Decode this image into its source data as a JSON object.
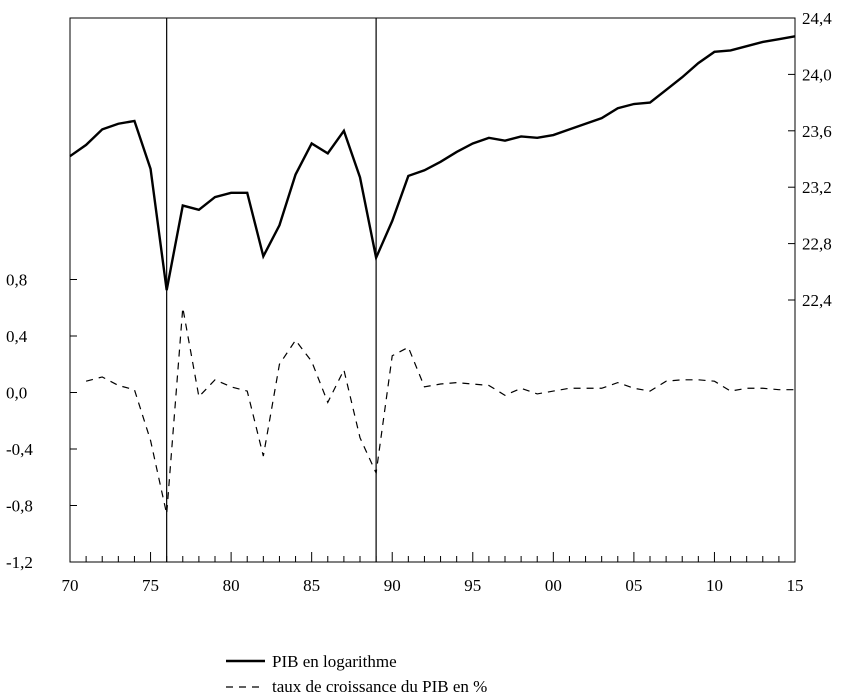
{
  "chart_data": {
    "type": "line",
    "title": "",
    "xlabel": "",
    "left_axis": {
      "ylim": [
        -1.2,
        1.2
      ],
      "ticks": [
        0.8,
        0.4,
        0.0,
        -0.4,
        -0.8,
        -1.2
      ],
      "tick_labels": [
        "0,8",
        "0,4",
        "0,0",
        "-0,4",
        "-0,8",
        "-1,2"
      ]
    },
    "right_axis": {
      "ylim": [
        22.4,
        24.4
      ],
      "ticks": [
        24.4,
        24.0,
        23.6,
        23.2,
        22.8,
        22.4
      ],
      "tick_labels": [
        "24,4",
        "24,0",
        "23,6",
        "23,2",
        "22,8",
        "22,4"
      ]
    },
    "x": {
      "range": [
        1970,
        2015
      ],
      "ticks": [
        1970,
        1975,
        1980,
        1985,
        1990,
        1995,
        2000,
        2005,
        2010,
        2015
      ],
      "tick_labels": [
        "70",
        "75",
        "80",
        "85",
        "90",
        "95",
        "00",
        "05",
        "10",
        "15"
      ]
    },
    "vertical_lines": [
      1976,
      1989
    ],
    "grid": false,
    "legend_position": "bottom-center",
    "series": [
      {
        "name": "PIB en logarithme",
        "axis": "right",
        "style": "solid",
        "x": [
          1970,
          1971,
          1972,
          1973,
          1974,
          1975,
          1976,
          1977,
          1978,
          1979,
          1980,
          1981,
          1982,
          1983,
          1984,
          1985,
          1986,
          1987,
          1988,
          1989,
          1990,
          1991,
          1992,
          1993,
          1994,
          1995,
          1996,
          1997,
          1998,
          1999,
          2000,
          2001,
          2002,
          2003,
          2004,
          2005,
          2006,
          2007,
          2008,
          2009,
          2010,
          2011,
          2012,
          2013,
          2014,
          2015
        ],
        "values": [
          23.42,
          23.5,
          23.61,
          23.65,
          23.67,
          23.33,
          22.47,
          23.07,
          23.04,
          23.13,
          23.16,
          23.16,
          22.71,
          22.93,
          23.29,
          23.51,
          23.44,
          23.6,
          23.27,
          22.7,
          22.96,
          23.28,
          23.32,
          23.38,
          23.45,
          23.51,
          23.55,
          23.53,
          23.56,
          23.55,
          23.57,
          23.61,
          23.65,
          23.69,
          23.76,
          23.79,
          23.8,
          23.89,
          23.98,
          24.08,
          24.16,
          24.17,
          24.2,
          24.23,
          24.25,
          24.27
        ]
      },
      {
        "name": "taux de croissance du PIB en %",
        "axis": "left",
        "style": "dashed",
        "x": [
          1971,
          1972,
          1973,
          1974,
          1975,
          1976,
          1977,
          1978,
          1979,
          1980,
          1981,
          1982,
          1983,
          1984,
          1985,
          1986,
          1987,
          1988,
          1989,
          1990,
          1991,
          1992,
          1993,
          1994,
          1995,
          1996,
          1997,
          1998,
          1999,
          2000,
          2001,
          2002,
          2003,
          2004,
          2005,
          2006,
          2007,
          2008,
          2009,
          2010,
          2011,
          2012,
          2013,
          2014,
          2015
        ],
        "values": [
          0.08,
          0.11,
          0.05,
          0.02,
          -0.34,
          -0.86,
          0.6,
          -0.03,
          0.09,
          0.04,
          0.01,
          -0.45,
          0.2,
          0.37,
          0.22,
          -0.07,
          0.16,
          -0.32,
          -0.57,
          0.26,
          0.32,
          0.04,
          0.06,
          0.07,
          0.06,
          0.05,
          -0.02,
          0.03,
          -0.01,
          0.01,
          0.03,
          0.03,
          0.03,
          0.07,
          0.03,
          0.01,
          0.08,
          0.09,
          0.09,
          0.08,
          0.01,
          0.03,
          0.03,
          0.02,
          0.02
        ]
      }
    ]
  }
}
